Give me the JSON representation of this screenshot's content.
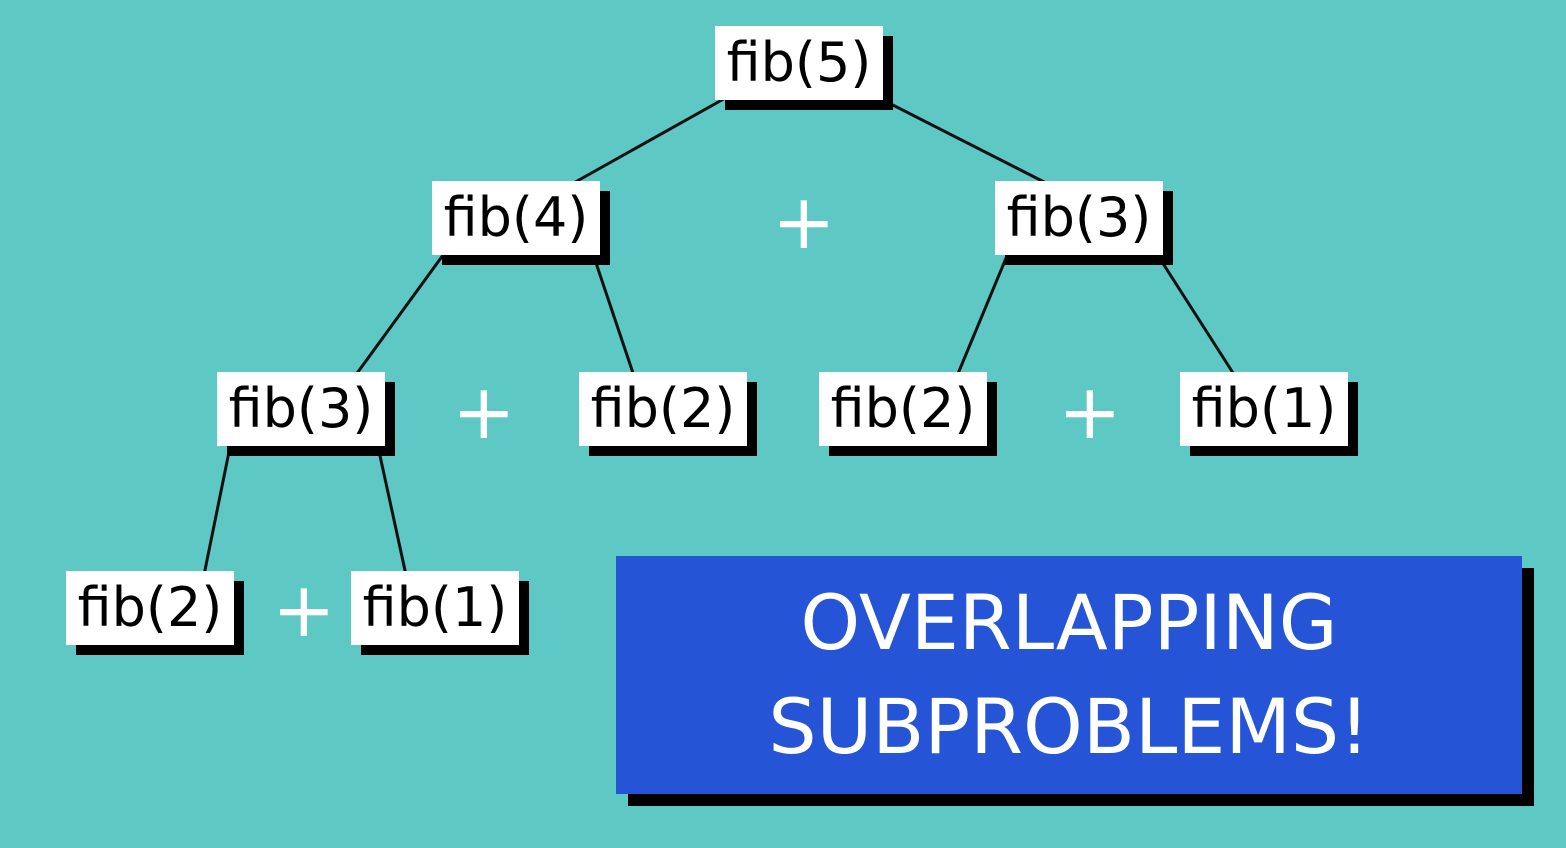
{
  "colors": {
    "background": "#5ec9c4",
    "node_fill": "#ffffff",
    "shadow": "#000000",
    "edge": "#111111",
    "plus": "#ffffff",
    "callout_fill": "#2554d6",
    "callout_text": "#ffffff"
  },
  "nodes": [
    {
      "id": "fib5",
      "label": "fib(5)"
    },
    {
      "id": "fib4",
      "label": "fib(4)"
    },
    {
      "id": "fib3-right",
      "label": "fib(3)"
    },
    {
      "id": "fib3-left",
      "label": "fib(3)"
    },
    {
      "id": "fib2-mid",
      "label": "fib(2)"
    },
    {
      "id": "fib2-right",
      "label": "fib(2)"
    },
    {
      "id": "fib1-right",
      "label": "fib(1)"
    },
    {
      "id": "fib2-bottom",
      "label": "fib(2)"
    },
    {
      "id": "fib1-bottom",
      "label": "fib(1)"
    }
  ],
  "edges": [
    {
      "from": "fib5",
      "to": "fib4"
    },
    {
      "from": "fib5",
      "to": "fib3-right"
    },
    {
      "from": "fib4",
      "to": "fib3-left"
    },
    {
      "from": "fib4",
      "to": "fib2-mid"
    },
    {
      "from": "fib3-right",
      "to": "fib2-right"
    },
    {
      "from": "fib3-right",
      "to": "fib1-right"
    },
    {
      "from": "fib3-left",
      "to": "fib2-bottom"
    },
    {
      "from": "fib3-left",
      "to": "fib1-bottom"
    }
  ],
  "operators": [
    {
      "between": [
        "fib4",
        "fib3-right"
      ],
      "symbol": "+"
    },
    {
      "between": [
        "fib3-left",
        "fib2-mid"
      ],
      "symbol": "+"
    },
    {
      "between": [
        "fib2-right",
        "fib1-right"
      ],
      "symbol": "+"
    },
    {
      "between": [
        "fib2-bottom",
        "fib1-bottom"
      ],
      "symbol": "+"
    }
  ],
  "callout": {
    "line1": "OVERLAPPING",
    "line2": "SUBPROBLEMS!"
  }
}
